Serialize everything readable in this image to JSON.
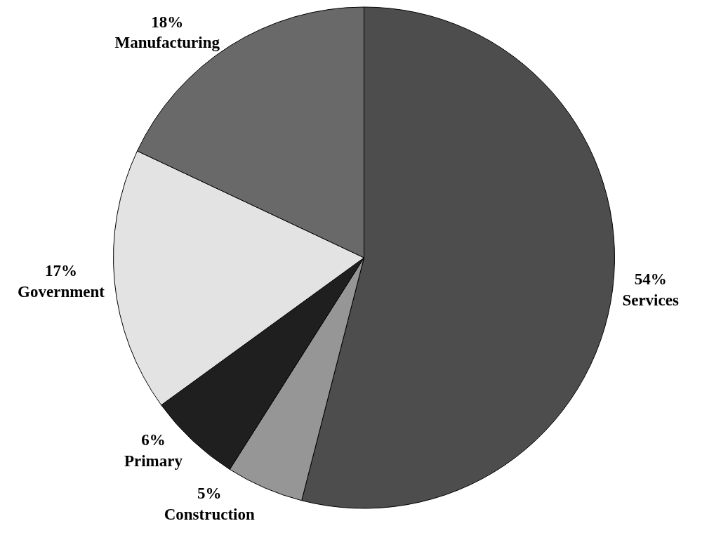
{
  "chart_data": {
    "type": "pie",
    "categories": [
      "Services",
      "Construction",
      "Primary",
      "Government",
      "Manufacturing"
    ],
    "values": [
      54,
      5,
      6,
      17,
      18
    ],
    "value_labels": [
      "54%",
      "5%",
      "6%",
      "17%",
      "18%"
    ],
    "colors": [
      "#4d4d4d",
      "#969696",
      "#1f1f1f",
      "#e3e3e3",
      "#696969"
    ],
    "legend": false
  }
}
